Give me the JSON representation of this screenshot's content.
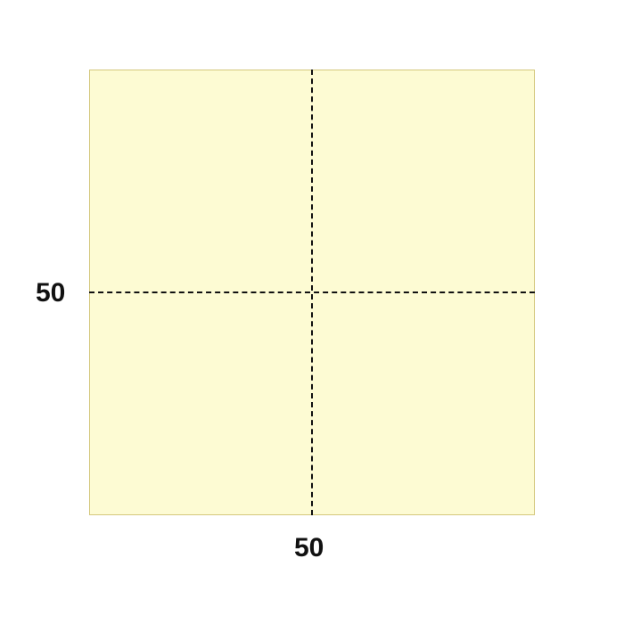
{
  "diagram": {
    "square_fill": "#fdfbd3",
    "square_border": "#d4c77c",
    "line_color": "#111111",
    "left_label": "50",
    "bottom_label": "50"
  }
}
